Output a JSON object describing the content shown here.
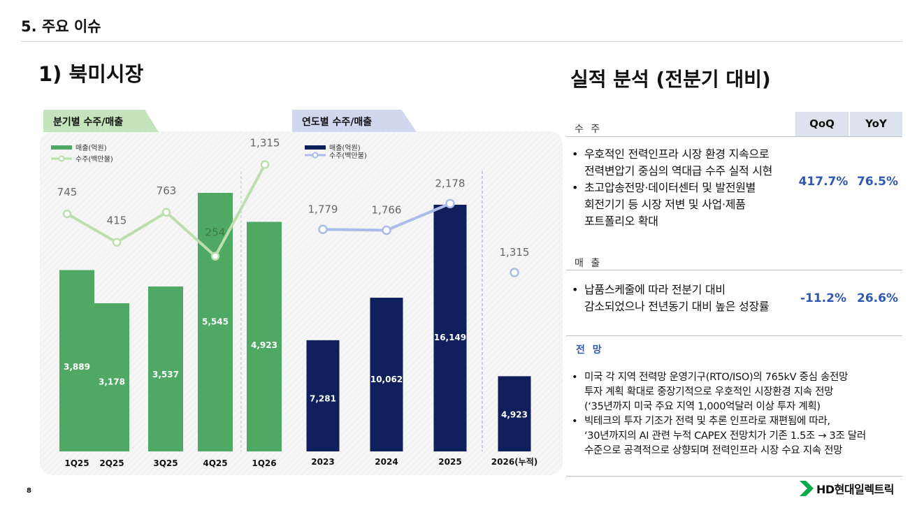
{
  "header": {
    "section_title": "5. 주요 이슈",
    "sub_title": "1) 북미시장",
    "page_number": "8",
    "logo_text": "HD현대일렉트릭"
  },
  "tags": {
    "quarterly": "분기별 수주/매출",
    "annual": "연도별 수주/매출"
  },
  "colors": {
    "green_bar": "#4fa964",
    "green_line": "#bcdfae",
    "navy_bar": "#0f1f5c",
    "blue_line": "#aabde9",
    "accent_blue": "#2f58b3",
    "logo_green": "#0aa94a"
  },
  "chart_data": [
    {
      "type": "bar",
      "categories": [
        "1Q25",
        "2Q25",
        "3Q25",
        "4Q25",
        "1Q26"
      ],
      "series": [
        {
          "name": "매출(억원)",
          "type": "bar",
          "values": [
            3889,
            3178,
            3537,
            5545,
            4923
          ],
          "labels": [
            "3,889",
            "3,178",
            "3,537",
            "5,545",
            "4,923"
          ]
        },
        {
          "name": "수주(백만불)",
          "type": "line",
          "values": [
            745,
            415,
            763,
            254,
            1315
          ],
          "labels": [
            "745",
            "415",
            "763",
            "254",
            "1,315"
          ]
        }
      ],
      "legend": [
        "매출(억원)",
        "수주(백만불)"
      ],
      "legend_position": "top-left"
    },
    {
      "type": "bar",
      "categories": [
        "2023",
        "2024",
        "2025",
        "2026(누적)"
      ],
      "series": [
        {
          "name": "매출(억원)",
          "type": "bar",
          "values": [
            7281,
            10062,
            16149,
            4923
          ],
          "labels": [
            "7,281",
            "10,062",
            "16,149",
            "4,923"
          ]
        },
        {
          "name": "수주(백만불)",
          "type": "line",
          "values": [
            1779,
            1766,
            2178,
            1315
          ],
          "labels": [
            "1,779",
            "1,766",
            "2,178",
            "1,315"
          ]
        }
      ],
      "legend": [
        "매출(억원)",
        "수주(백만불)"
      ],
      "legend_position": "top-left"
    }
  ],
  "analysis": {
    "title": "실적 분석 (전분기 대비)",
    "qoq_header": "QoQ",
    "yoy_header": "YoY",
    "orders": {
      "label": "수 주",
      "bullets": [
        "우호적인 전력인프라 시장 환경 지속으로",
        "전력변압기 중심의 역대급 수주 실적 시현",
        "초고압송전망·데이터센터 및 발전원별",
        "회전기기 등 시장 저변 및 사업·제품",
        "포트폴리오 확대"
      ],
      "qoq": "417.7%",
      "yoy": "76.5%"
    },
    "sales": {
      "label": "매 출",
      "bullets": [
        "납품스케줄에 따라 전분기 대비",
        "감소되었으나 전년동기 대비 높은 성장률"
      ],
      "qoq": "-11.2%",
      "yoy": "26.6%"
    },
    "outlook": {
      "label": "전 망",
      "bullets": [
        "미국 각 지역 전력망 운영기구(RTO/ISO)의 765kV 중심 송전망",
        "투자 계획 확대로 중장기적으로 우호적인 시장환경 지속 전망",
        "(‘35년까지 미국 주요 지역 1,000억달러 이상 투자 계획)",
        "빅테크의 투자 기조가 전력 및 추론 인프라로 재편됨에 따라,",
        "‘30년까지의 AI 관련 누적 CAPEX 전망치가 기존 1.5조 → 3조 달러",
        "수준으로 공격적으로 상향되며 전력인프라 시장 수요 지속 전망"
      ]
    }
  }
}
